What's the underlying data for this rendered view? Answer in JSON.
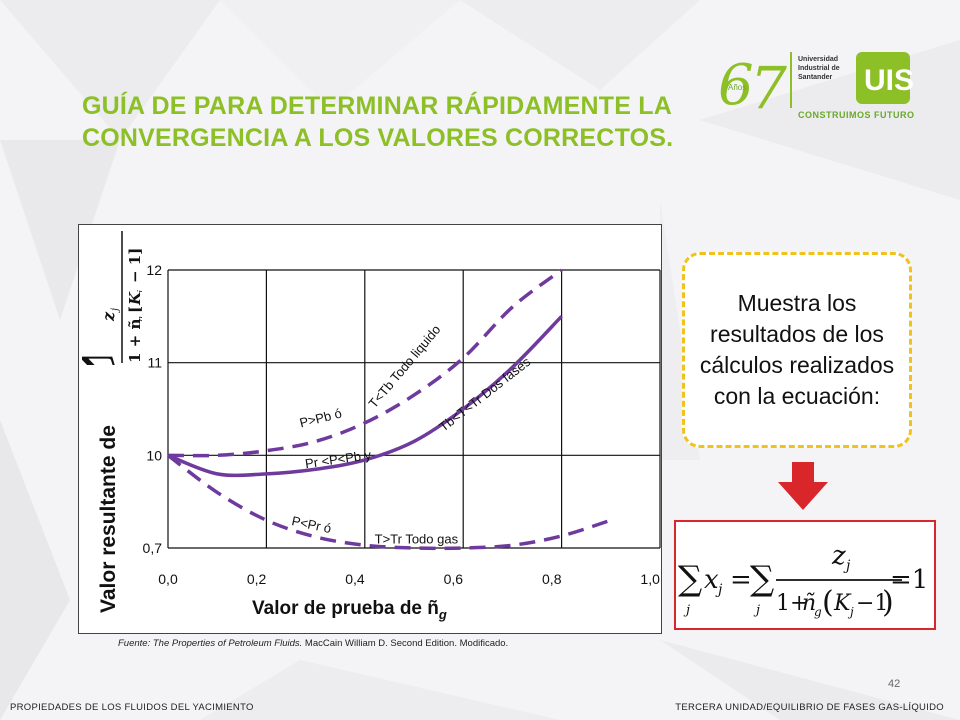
{
  "title_line1": "GUÍA DE PARA DETERMINAR RÁPIDAMENTE LA",
  "title_line2": "CONVERGENCIA A LOS VALORES  CORRECTOS.",
  "logo": {
    "years": "Años",
    "university_lines": [
      "Universidad",
      "Industrial de",
      "Santander"
    ],
    "tagline": "CONSTRUIMOS FUTURO"
  },
  "chart_data": {
    "type": "line",
    "ylabel_prefix": "Valor resultante de",
    "xlabel": "Valor de prueba de ñ",
    "xlabel_sub": "g",
    "x_ticks": [
      "0,0",
      "0,2",
      "0,4",
      "0,6",
      "0,8",
      "1,0"
    ],
    "y_ticks": [
      "0,7",
      "10",
      "11",
      "12"
    ],
    "series": [
      {
        "name": "P>Pb ó T<Tb Todo liquido",
        "style": "dashed",
        "x": [
          0.0,
          0.1,
          0.2,
          0.3,
          0.4,
          0.5,
          0.6,
          0.7,
          0.8
        ],
        "y": [
          10.0,
          10.0,
          10.05,
          10.15,
          10.35,
          10.65,
          11.05,
          11.6,
          12.0
        ]
      },
      {
        "name": "Pr <P<Pb y Tb<T<Tr Dos fases",
        "style": "solid",
        "x": [
          0.0,
          0.1,
          0.2,
          0.3,
          0.4,
          0.5,
          0.6,
          0.7,
          0.8
        ],
        "y": [
          10.0,
          9.8,
          9.8,
          9.85,
          9.95,
          10.15,
          10.5,
          10.95,
          11.5
        ]
      },
      {
        "name": "P<Pr ó T>Tr Todo gas",
        "style": "dashed",
        "x": [
          0.0,
          0.1,
          0.2,
          0.3,
          0.4,
          0.5,
          0.6,
          0.7,
          0.8,
          0.9
        ],
        "y": [
          10.0,
          9.6,
          9.3,
          9.12,
          9.03,
          9.0,
          9.0,
          9.03,
          9.13,
          9.3
        ]
      }
    ],
    "annotations": [
      "P>Pb ó",
      "T<Tb Todo liquido",
      "Pr <P<Pb y",
      "Tb<T<Tr Dos fases",
      "P<Pr ó",
      "T>Tr  Todo gas"
    ],
    "grid": true,
    "line_color": "#6f3a9e"
  },
  "source_italic": "Fuente: The Properties of Petroleum Fluids.",
  "source_rest": " MacCain William D. Second Edition. Modificado.",
  "callout_text": "Muestra los resultados  de los cálculos realizados con la ecuación:",
  "page_number": "42",
  "footer_left": "PROPIEDADES DE LOS FLUIDOS DEL YACIMIENTO",
  "footer_right": "TERCERA UNIDAD/EQUILIBRIO  DE FASES GAS-LÍQUIDO",
  "colors": {
    "title": "#8dbf26",
    "callout_border": "#f1c21b",
    "arrow": "#d8262b",
    "eq_border": "#d8262b"
  }
}
